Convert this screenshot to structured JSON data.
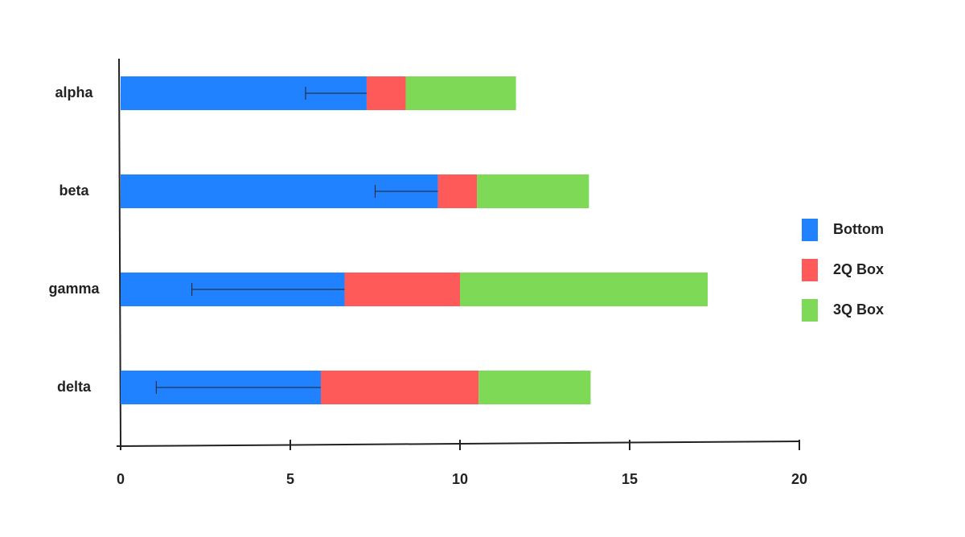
{
  "chart_data": {
    "type": "bar",
    "orientation": "horizontal",
    "stacked": true,
    "categories": [
      "alpha",
      "beta",
      "gamma",
      "delta"
    ],
    "series": [
      {
        "name": "Bottom",
        "color": "#2082ff",
        "values": [
          7.25,
          9.35,
          6.6,
          5.9
        ],
        "errors": [
          1.8,
          1.85,
          4.5,
          4.85
        ]
      },
      {
        "name": "2Q Box",
        "color": "#ff5a5a",
        "values": [
          1.15,
          1.15,
          3.4,
          4.65
        ]
      },
      {
        "name": "3Q Box",
        "color": "#7ed957",
        "values": [
          3.25,
          3.3,
          7.3,
          3.3
        ]
      }
    ],
    "xlim": [
      0,
      20
    ],
    "xticks": [
      0,
      5,
      10,
      15,
      20
    ],
    "legend": "right"
  }
}
